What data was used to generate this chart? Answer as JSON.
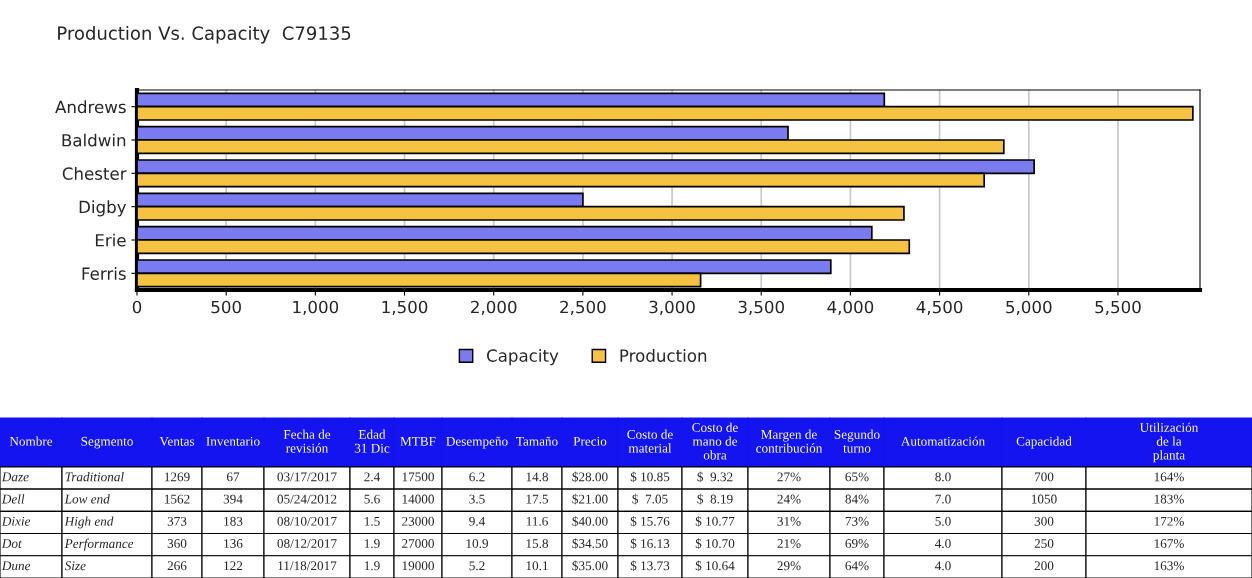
{
  "chart_data": [
    {
      "type": "bar",
      "title": "Production Vs. Capacity  C79135",
      "orientation": "horizontal",
      "categories": [
        "Andrews",
        "Baldwin",
        "Chester",
        "Digby",
        "Erie",
        "Ferris"
      ],
      "series": [
        {
          "name": "Capacity",
          "color": "#7b7bf0",
          "values": [
            4190,
            3650,
            5030,
            2500,
            4120,
            3890
          ]
        },
        {
          "name": "Production",
          "color": "#f5c242",
          "values": [
            5920,
            4860,
            4750,
            4300,
            4330,
            3160
          ]
        }
      ],
      "xlim": [
        0,
        5960
      ],
      "xticks": [
        {
          "value": 0,
          "label": "0"
        },
        {
          "value": 500,
          "label": "500"
        },
        {
          "value": 1000,
          "label": "1,000"
        },
        {
          "value": 1500,
          "label": "1,500"
        },
        {
          "value": 2000,
          "label": "2,000"
        },
        {
          "value": 2500,
          "label": "2,500"
        },
        {
          "value": 3000,
          "label": "3,000"
        },
        {
          "value": 3500,
          "label": "3,500"
        },
        {
          "value": 4000,
          "label": "4,000"
        },
        {
          "value": 4500,
          "label": "4,500"
        },
        {
          "value": 5000,
          "label": "5,000"
        },
        {
          "value": 5500,
          "label": "5,500"
        }
      ],
      "grid": "x",
      "legend": "bottom"
    },
    {
      "type": "other",
      "categories": [
        "Nombre",
        "Segmento",
        "Ventas",
        "Inventario",
        "Fecha de\nrevisión",
        "Edad\n31 Dic",
        "MTBF",
        "Desempeño",
        "Tamaño",
        "Precio",
        "Costo de\nmaterial",
        "Costo de\nmano de\nobra",
        "Margen de\ncontribución",
        "Segundo\nturno",
        "Automatización",
        "Capacidad",
        "Utilización\nde la\nplanta"
      ],
      "cell_labels": [
        [
          "Daze",
          "Traditional",
          "1269",
          "67",
          "03/17/2017",
          "2.4",
          "17500",
          "6.2",
          "14.8",
          "$28.00",
          "$ 10.85",
          "$  9.32",
          "27%",
          "65%",
          "8.0",
          "700",
          "164%"
        ],
        [
          "Dell",
          "Low end",
          "1562",
          "394",
          "05/24/2012",
          "5.6",
          "14000",
          "3.5",
          "17.5",
          "$21.00",
          "$  7.05",
          "$  8.19",
          "24%",
          "84%",
          "7.0",
          "1050",
          "183%"
        ],
        [
          "Dixie",
          "High end",
          "373",
          "183",
          "08/10/2017",
          "1.5",
          "23000",
          "9.4",
          "11.6",
          "$40.00",
          "$ 15.76",
          "$ 10.77",
          "31%",
          "73%",
          "5.0",
          "300",
          "172%"
        ],
        [
          "Dot",
          "Performance",
          "360",
          "136",
          "08/12/2017",
          "1.9",
          "27000",
          "10.9",
          "15.8",
          "$34.50",
          "$ 16.13",
          "$ 10.70",
          "21%",
          "69%",
          "4.0",
          "250",
          "167%"
        ],
        [
          "Dune",
          "Size",
          "266",
          "122",
          "11/18/2017",
          "1.9",
          "19000",
          "5.2",
          "10.1",
          "$35.00",
          "$ 13.73",
          "$ 10.64",
          "29%",
          "64%",
          "4.0",
          "200",
          "163%"
        ]
      ]
    }
  ]
}
